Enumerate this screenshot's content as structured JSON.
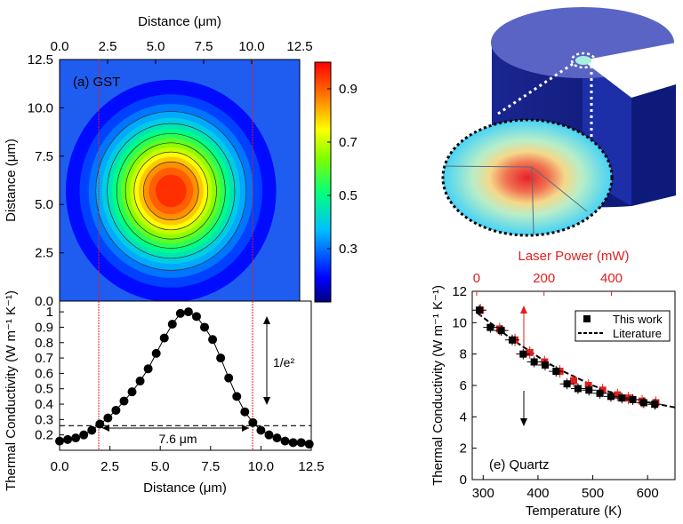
{
  "colors": {
    "accent_red": "#e0201e",
    "black": "#000000"
  },
  "chart_data": [
    {
      "type": "heatmap",
      "panel_label": "(a) GST",
      "xlabel": "Distance (μm)",
      "ylabel": "Distance (μm)",
      "xlim": [
        0,
        12.5
      ],
      "ylim": [
        0,
        12.5
      ],
      "x_ticks": [
        "0.0",
        "2.5",
        "5.0",
        "7.5",
        "10.0",
        "12.5"
      ],
      "y_ticks": [
        "0.0",
        "2.5",
        "5.0",
        "7.5",
        "10.0",
        "12.5"
      ],
      "colorbar_ticks": [
        "0.3",
        "0.5",
        "0.7",
        "0.9"
      ],
      "colorbar_range": [
        0.1,
        1.0
      ],
      "peak_center": [
        5.8,
        5.7
      ],
      "peak_value": 1.0,
      "background_value": 0.15,
      "contour_levels": [
        0.35,
        0.45,
        0.55,
        0.65,
        0.75,
        0.85
      ]
    },
    {
      "type": "scatter",
      "ylabel": "Thermal Conductivity (W m⁻¹ K⁻¹)",
      "xlabel": "Distance (μm)",
      "xlim": [
        0,
        12.5
      ],
      "ylim": [
        0.1,
        1.07
      ],
      "x_ticks": [
        "0.0",
        "2.5",
        "5.0",
        "7.5",
        "10.0",
        "12.5"
      ],
      "y_ticks": [
        "0.2",
        "0.3",
        "0.4",
        "0.5",
        "0.6",
        "0.7",
        "0.8",
        "0.9",
        "1"
      ],
      "x": [
        0.0,
        0.4,
        0.8,
        1.2,
        1.6,
        2.0,
        2.4,
        2.8,
        3.2,
        3.6,
        4.0,
        4.4,
        4.8,
        5.2,
        5.6,
        6.0,
        6.4,
        6.8,
        7.2,
        7.6,
        8.0,
        8.4,
        8.8,
        9.2,
        9.6,
        10.0,
        10.4,
        10.8,
        11.2,
        11.6,
        12.0,
        12.4
      ],
      "y": [
        0.16,
        0.17,
        0.18,
        0.2,
        0.23,
        0.27,
        0.31,
        0.36,
        0.42,
        0.48,
        0.55,
        0.63,
        0.73,
        0.83,
        0.92,
        0.99,
        1.0,
        0.97,
        0.9,
        0.82,
        0.7,
        0.57,
        0.45,
        0.35,
        0.28,
        0.23,
        0.2,
        0.18,
        0.16,
        0.15,
        0.15,
        0.14
      ],
      "dashed_level": 0.26,
      "markers_x": [
        2.0,
        9.6
      ],
      "width_label": "7.6 μm",
      "ratio_label": "1/e²"
    },
    {
      "type": "scatter",
      "panel_label": "(e) Quartz",
      "xlabel": "Temperature (K)",
      "ylabel": "Thermal Conductivity (W m⁻¹ K⁻¹)",
      "top_xlabel": "Laser Power (mW)",
      "xlim": [
        280,
        650
      ],
      "ylim": [
        0,
        12
      ],
      "x_ticks": [
        "300",
        "400",
        "500",
        "600"
      ],
      "y_ticks": [
        "0",
        "2",
        "4",
        "6",
        "8",
        "10",
        "12"
      ],
      "top_ticks": [
        "0",
        "200",
        "400"
      ],
      "top_tick_temps": [
        288,
        411,
        534
      ],
      "series": [
        {
          "name": "This work",
          "x": [
            293,
            313,
            333,
            353,
            373,
            393,
            413,
            433,
            453,
            473,
            493,
            513,
            533,
            553,
            573,
            593,
            613
          ],
          "y": [
            10.8,
            9.7,
            9.5,
            8.9,
            8.0,
            7.5,
            7.3,
            6.9,
            6.1,
            5.8,
            5.7,
            5.5,
            5.3,
            5.2,
            5.1,
            4.9,
            4.8
          ]
        },
        {
          "name": "",
          "x": [
            295,
            330,
            358,
            385,
            412,
            440,
            465,
            492,
            518,
            545,
            565,
            590,
            615
          ],
          "y": [
            10.8,
            9.6,
            8.9,
            8.1,
            7.5,
            6.9,
            6.3,
            6.0,
            5.7,
            5.4,
            5.2,
            5.0,
            4.9
          ]
        },
        {
          "name": "Literature",
          "type": "line",
          "x": [
            290,
            320,
            350,
            380,
            410,
            440,
            470,
            500,
            530,
            560,
            590,
            620,
            650
          ],
          "y": [
            10.6,
            9.8,
            9.0,
            8.3,
            7.6,
            7.0,
            6.5,
            6.0,
            5.6,
            5.3,
            5.0,
            4.8,
            4.6
          ]
        }
      ]
    }
  ]
}
